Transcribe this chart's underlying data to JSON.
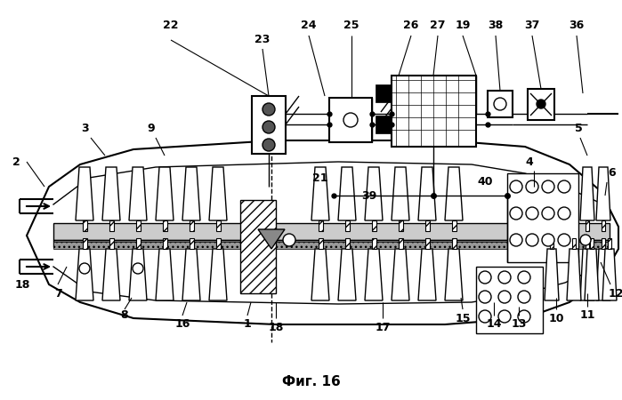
{
  "title": "Фиг. 16",
  "bg_color": "#ffffff",
  "line_color": "#000000",
  "fig_width": 6.99,
  "fig_height": 4.5,
  "dpi": 100
}
